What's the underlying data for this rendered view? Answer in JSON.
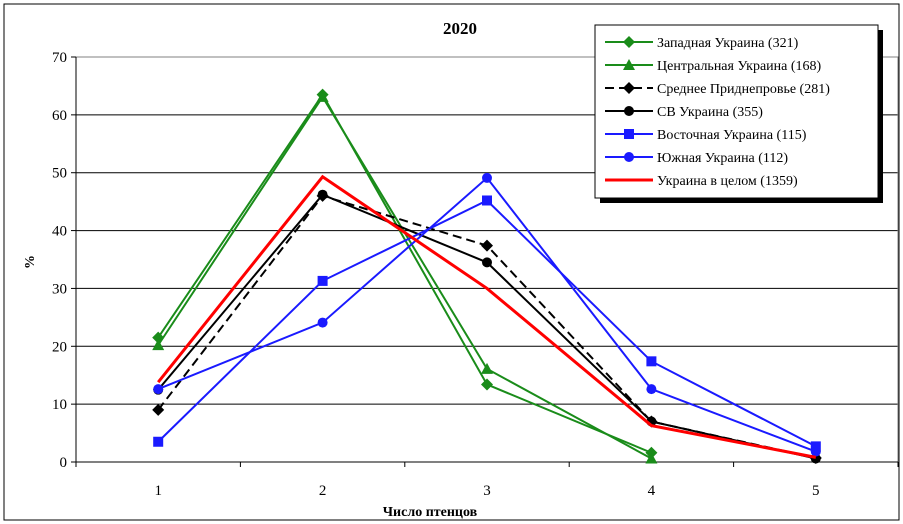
{
  "chart_data": {
    "type": "line",
    "title": "2020",
    "xlabel": "Число птенцов",
    "ylabel": "%",
    "x": [
      1,
      2,
      3,
      4,
      5
    ],
    "x_tick_labels": [
      "1",
      "2",
      "3",
      "4",
      "5"
    ],
    "ylim": [
      0,
      70
    ],
    "y_ticks": [
      0,
      10,
      20,
      30,
      40,
      50,
      60,
      70
    ],
    "y_tick_labels": [
      "0",
      "10",
      "20",
      "30",
      "40",
      "50",
      "60",
      "70"
    ],
    "grid": "horizontal",
    "legend_position": "top-right",
    "series": [
      {
        "name": "Западная Украина (321)",
        "color": "#1a8c1a",
        "marker": "diamond",
        "dashed": false,
        "values": [
          21.5,
          63.5,
          13.4,
          1.6,
          null
        ]
      },
      {
        "name": "Центральная Украина (168)",
        "color": "#1a8c1a",
        "marker": "triangle",
        "dashed": false,
        "values": [
          20.2,
          63.1,
          16.1,
          0.6,
          null
        ]
      },
      {
        "name": "Среднее Приднепровье (281)",
        "color": "#000000",
        "marker": "diamond",
        "dashed": true,
        "values": [
          9.0,
          46.0,
          37.4,
          7.0,
          0.7
        ]
      },
      {
        "name": "СВ Украина (355)",
        "color": "#000000",
        "marker": "circle",
        "dashed": false,
        "values": [
          12.5,
          46.2,
          34.5,
          7.0,
          0.6
        ]
      },
      {
        "name": "Восточная Украина (115)",
        "color": "#1a1aff",
        "marker": "square",
        "dashed": false,
        "values": [
          3.5,
          31.3,
          45.2,
          17.4,
          2.7
        ]
      },
      {
        "name": "Южная Украина (112)",
        "color": "#1a1aff",
        "marker": "circle",
        "dashed": false,
        "values": [
          12.6,
          24.1,
          49.1,
          12.6,
          1.8
        ]
      },
      {
        "name": "Украина в целом (1359)",
        "color": "#ff0000",
        "marker": "none",
        "dashed": false,
        "values": [
          13.8,
          49.3,
          30.0,
          6.3,
          0.8
        ]
      }
    ]
  }
}
